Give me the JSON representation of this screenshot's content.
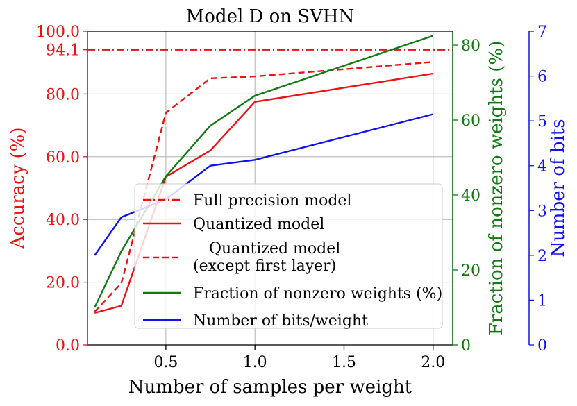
{
  "chart_data": {
    "type": "line",
    "title": "Model D on SVHN",
    "xlabel": "Number of samples per weight",
    "ylabel_left": "Accuracy (%)",
    "ylabel_right1": "Fraction of nonzero weights (%)",
    "ylabel_right2": "Number of bits",
    "x_ticks": [
      "0.5",
      "1.0",
      "1.5",
      "2.0"
    ],
    "x_tick_values": [
      0.5,
      1.0,
      1.5,
      2.0
    ],
    "xlim": [
      0.06,
      2.11
    ],
    "acc_ticks": [
      "0.0",
      "20.0",
      "40.0",
      "60.0",
      "80.0",
      "94.1",
      "100.0"
    ],
    "acc_tick_values": [
      0,
      20,
      40,
      60,
      80,
      94.1,
      100
    ],
    "acc_ylim": [
      0,
      100
    ],
    "frac_ticks": [
      "0",
      "20",
      "40",
      "60",
      "80"
    ],
    "frac_tick_values": [
      0,
      20,
      40,
      60,
      80
    ],
    "frac_ylim": [
      0,
      83.7
    ],
    "bits_ticks": [
      "0",
      "1",
      "2",
      "3",
      "4",
      "5",
      "6",
      "7"
    ],
    "bits_tick_values": [
      0,
      1,
      2,
      3,
      4,
      5,
      6,
      7
    ],
    "bits_ylim": [
      0,
      7
    ],
    "grid": true,
    "legend_position": "lower-right",
    "colors": {
      "red": "#ee1111",
      "green": "#117a11",
      "blue": "#1111ee"
    },
    "series": [
      {
        "name": "Full precision model",
        "axis": "acc",
        "color": "#ee1111",
        "style": "dashdot",
        "x": [
          0.06,
          2.11
        ],
        "y": [
          94.1,
          94.1
        ]
      },
      {
        "name": "Quantized model",
        "axis": "acc",
        "color": "#ee1111",
        "style": "solid",
        "x": [
          0.1,
          0.25,
          0.5,
          0.75,
          1.0,
          2.0
        ],
        "y": [
          10.2,
          12.5,
          53.6,
          62.0,
          77.5,
          86.5
        ]
      },
      {
        "name": "Quantized model\n(except first layer)",
        "axis": "acc",
        "color": "#ee1111",
        "style": "dashed",
        "x": [
          0.1,
          0.25,
          0.5,
          0.75,
          1.0,
          2.0
        ],
        "y": [
          10.6,
          19.7,
          74.0,
          85.0,
          85.6,
          90.2
        ]
      },
      {
        "name": "Fraction of nonzero weights (%)",
        "axis": "frac",
        "color": "#117a11",
        "style": "solid",
        "x": [
          0.1,
          0.25,
          0.5,
          0.75,
          1.0,
          2.0
        ],
        "y": [
          10.0,
          25.0,
          45.0,
          58.5,
          66.5,
          82.5
        ]
      },
      {
        "name": "Number of bits/weight",
        "axis": "bits",
        "color": "#1111ee",
        "style": "solid",
        "x": [
          0.1,
          0.25,
          0.5,
          0.75,
          1.0,
          2.0
        ],
        "y": [
          2.0,
          2.85,
          3.25,
          4.0,
          4.13,
          5.15
        ]
      }
    ]
  }
}
